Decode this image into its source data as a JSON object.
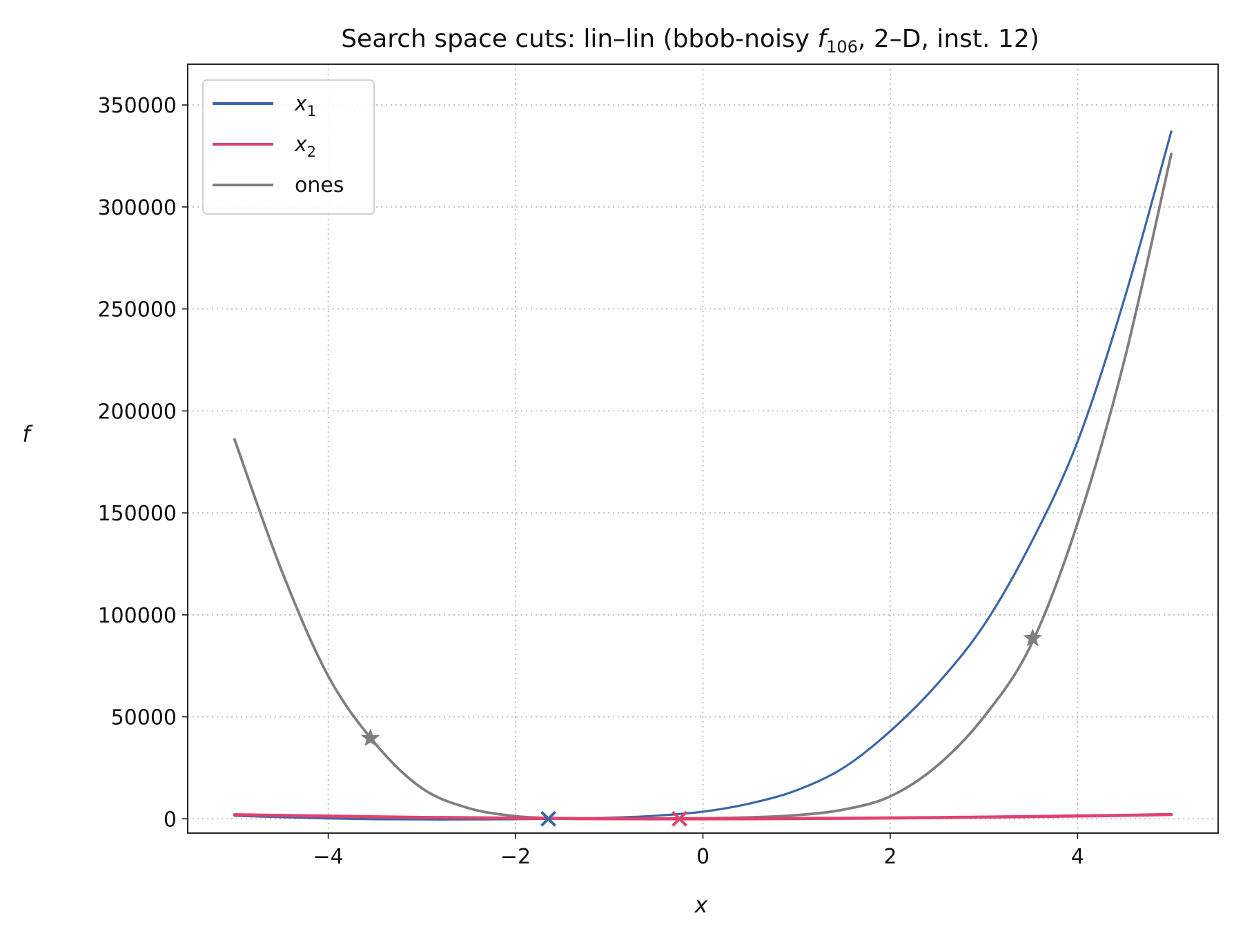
{
  "chart_data": {
    "type": "line",
    "title": {
      "prefix": "Search space cuts: lin–lin (bbob-noisy ",
      "f": "f",
      "sub": "106",
      "suffix": ", 2–D, inst. 12)"
    },
    "xlabel": "x",
    "ylabel": "f",
    "xlim": [
      -5.5,
      5.5
    ],
    "ylim": [
      -7000,
      370000
    ],
    "xticks": [
      -4,
      -2,
      0,
      2,
      4
    ],
    "xtick_labels": [
      "−4",
      "−2",
      "0",
      "2",
      "4"
    ],
    "yticks": [
      0,
      50000,
      100000,
      150000,
      200000,
      250000,
      300000,
      350000
    ],
    "ytick_labels": [
      "0",
      "50000",
      "100000",
      "150000",
      "200000",
      "250000",
      "300000",
      "350000"
    ],
    "grid": true,
    "legend_position": "upper-left",
    "series": [
      {
        "name": "x₁",
        "label_base": "x",
        "label_sub": "1",
        "color": "#3a66a8",
        "x": [
          -5.0,
          -4.5,
          -4.0,
          -3.5,
          -3.0,
          -2.5,
          -2.0,
          -1.65,
          -1.5,
          -1.0,
          -0.5,
          0.0,
          0.5,
          1.0,
          1.5,
          2.0,
          2.5,
          3.0,
          3.5,
          4.0,
          4.5,
          5.0
        ],
        "y": [
          1500,
          800,
          200,
          -200,
          -300,
          -300,
          -200,
          0,
          100,
          500,
          1500,
          3500,
          7500,
          14000,
          25000,
          43000,
          66000,
          95000,
          135000,
          185000,
          255000,
          337000
        ],
        "marker": {
          "x": -1.65,
          "y": 0,
          "symbol": "x"
        }
      },
      {
        "name": "x₂",
        "label_base": "x",
        "label_sub": "2",
        "color": "#e0426e",
        "x": [
          -5.0,
          -4.0,
          -3.0,
          -2.0,
          -1.0,
          -0.25,
          0.5,
          1.5,
          2.5,
          3.5,
          4.5,
          5.0
        ],
        "y": [
          2000,
          1300,
          700,
          300,
          60,
          0,
          50,
          250,
          600,
          1100,
          1700,
          2100
        ],
        "marker": {
          "x": -0.25,
          "y": 0,
          "symbol": "x"
        }
      },
      {
        "name": "ones",
        "label_base": "ones",
        "label_sub": "",
        "color": "#7f7f7f",
        "x": [
          -5.0,
          -4.5,
          -4.0,
          -3.5,
          -3.0,
          -2.5,
          -2.0,
          -1.5,
          -1.2,
          -1.0,
          -0.5,
          0.0,
          0.5,
          1.0,
          1.5,
          2.0,
          2.5,
          3.0,
          3.5,
          4.0,
          4.5,
          5.0
        ],
        "y": [
          186000,
          122000,
          70000,
          37000,
          15000,
          5200,
          1300,
          120,
          0,
          40,
          120,
          280,
          700,
          1800,
          4500,
          11000,
          26000,
          50000,
          85000,
          145000,
          225000,
          326000
        ],
        "markers": [
          {
            "x": -3.55,
            "y": 39500,
            "symbol": "star"
          },
          {
            "x": 3.52,
            "y": 88500,
            "symbol": "star"
          }
        ]
      }
    ]
  }
}
